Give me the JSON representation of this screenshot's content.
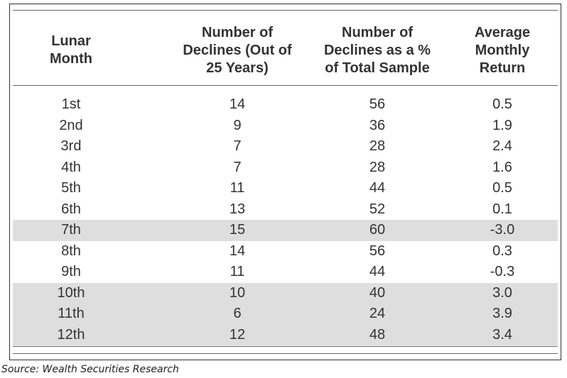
{
  "chart_data": {
    "type": "table",
    "columns": [
      {
        "lines": [
          "Lunar",
          "Month"
        ]
      },
      {
        "lines": [
          "Number of",
          "Declines (Out of",
          "25 Years)"
        ]
      },
      {
        "lines": [
          "Number of",
          "Declines as a %",
          "of Total Sample"
        ]
      },
      {
        "lines": [
          "Average",
          "Monthly",
          "Return"
        ]
      }
    ],
    "rows": [
      {
        "cells": [
          "1st",
          "14",
          "56",
          "0.5"
        ],
        "highlighted": false
      },
      {
        "cells": [
          "2nd",
          "9",
          "36",
          "1.9"
        ],
        "highlighted": false
      },
      {
        "cells": [
          "3rd",
          "7",
          "28",
          "2.4"
        ],
        "highlighted": false
      },
      {
        "cells": [
          "4th",
          "7",
          "28",
          "1.6"
        ],
        "highlighted": false
      },
      {
        "cells": [
          "5th",
          "11",
          "44",
          "0.5"
        ],
        "highlighted": false
      },
      {
        "cells": [
          "6th",
          "13",
          "52",
          "0.1"
        ],
        "highlighted": false
      },
      {
        "cells": [
          "7th",
          "15",
          "60",
          "-3.0"
        ],
        "highlighted": true
      },
      {
        "cells": [
          "8th",
          "14",
          "56",
          "0.3"
        ],
        "highlighted": false
      },
      {
        "cells": [
          "9th",
          "11",
          "44",
          "-0.3"
        ],
        "highlighted": false
      },
      {
        "cells": [
          "10th",
          "10",
          "40",
          "3.0"
        ],
        "highlighted": true
      },
      {
        "cells": [
          "11th",
          "6",
          "24",
          "3.9"
        ],
        "highlighted": true
      },
      {
        "cells": [
          "12th",
          "12",
          "48",
          "3.4"
        ],
        "highlighted": true
      }
    ],
    "highlight_color": "#dedede"
  },
  "source": "Source: Wealth Securities Research"
}
